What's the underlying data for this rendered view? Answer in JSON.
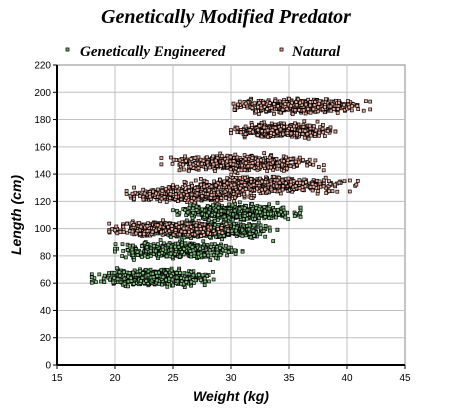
{
  "chart_data": {
    "type": "scatter",
    "title": "Genetically Modified Predator",
    "xlabel": "Weight (kg)",
    "ylabel": "Length (cm)",
    "xlim": [
      15,
      45
    ],
    "ylim": [
      0,
      220
    ],
    "x_ticks": [
      15,
      20,
      25,
      30,
      35,
      40,
      45
    ],
    "y_ticks": [
      0,
      20,
      40,
      60,
      80,
      100,
      120,
      140,
      160,
      180,
      200,
      220
    ],
    "grid": true,
    "legend_position": "top",
    "series": [
      {
        "name": "Genetically Engineered",
        "color": "#7fbf7f",
        "marker": "square",
        "clusters": [
          {
            "x_range": [
              18.0,
              28.5
            ],
            "y_center": 64,
            "y_spread": 6
          },
          {
            "x_range": [
              20.0,
              31.0
            ],
            "y_center": 84,
            "y_spread": 6
          },
          {
            "x_range": [
              23.0,
              34.0
            ],
            "y_center": 99,
            "y_spread": 6
          },
          {
            "x_range": [
              25.0,
              36.0
            ],
            "y_center": 112,
            "y_spread": 6
          }
        ]
      },
      {
        "name": "Natural",
        "color": "#f0b0a0",
        "marker": "square",
        "clusters": [
          {
            "x_range": [
              19.5,
              30.0
            ],
            "y_center": 100,
            "y_spread": 5
          },
          {
            "x_range": [
              21.0,
              32.0
            ],
            "y_center": 125,
            "y_spread": 5
          },
          {
            "x_range": [
              25.0,
              41.0
            ],
            "y_center": 132,
            "y_spread": 6
          },
          {
            "x_range": [
              24.0,
              38.0
            ],
            "y_center": 148,
            "y_spread": 6
          },
          {
            "x_range": [
              30.0,
              39.0
            ],
            "y_center": 172,
            "y_spread": 5
          },
          {
            "x_range": [
              30.0,
              42.0
            ],
            "y_center": 190,
            "y_spread": 5
          }
        ]
      }
    ]
  }
}
